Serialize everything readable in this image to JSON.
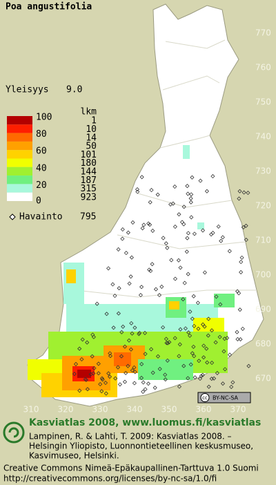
{
  "title": "Poa angustifolia",
  "frequency": {
    "label": "Yleisyys",
    "value": "9.0"
  },
  "legend": {
    "scale_labels": [
      "100",
      "80",
      "60",
      "40",
      "20",
      "0"
    ],
    "count_header": "lkm",
    "bands": [
      {
        "color": "#b40000",
        "count": 1
      },
      {
        "color": "#ff1e00",
        "count": 10
      },
      {
        "color": "#ff6a00",
        "count": 14
      },
      {
        "color": "#ffa000",
        "count": 50
      },
      {
        "color": "#ffd200",
        "count": 101
      },
      {
        "color": "#f0ff00",
        "count": 180
      },
      {
        "color": "#a0f030",
        "count": 144
      },
      {
        "color": "#70f080",
        "count": 187
      },
      {
        "color": "#a8f8dc",
        "count": 315
      },
      {
        "color": "#ffffff",
        "count": 923
      }
    ],
    "observations": {
      "label": "Havainto",
      "value": 795
    }
  },
  "map": {
    "yticks": [
      770,
      760,
      750,
      740,
      730,
      720,
      710,
      700,
      690,
      680,
      670
    ],
    "xticks": [
      310,
      320,
      330,
      340,
      350,
      360,
      370
    ]
  },
  "license_badge": "BY-NC-SA",
  "footer": {
    "heading": "Kasviatlas 2008, www.luomus.fi/kasviatlas",
    "citation": [
      "Lampinen, R. & Lahti, T. 2009: Kasviatlas 2008. –",
      "Helsingin Yliopisto, Luonnontieteellinen keskusmuseo,",
      "Kasvimuseo, Helsinki."
    ],
    "license": [
      "Creative Commons Nimeä-Epäkaupallinen-Tarttuva 1.0 Suomi",
      "http://creativecommons.org/licenses/by-nc-sa/1.0/fi"
    ]
  }
}
